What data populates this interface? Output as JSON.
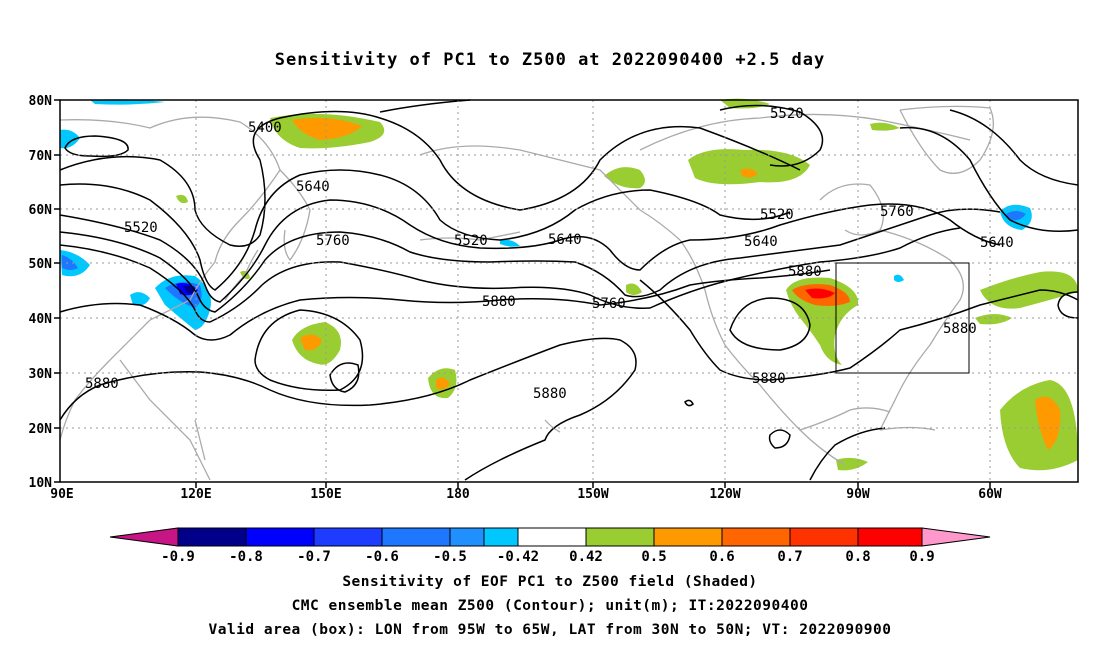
{
  "title": "Sensitivity of PC1 to Z500 at 2022090400 +2.5 day",
  "map": {
    "lon_labels": [
      "90E",
      "120E",
      "150E",
      "180",
      "150W",
      "120W",
      "90W",
      "60W"
    ],
    "lat_labels": [
      "80N",
      "70N",
      "60N",
      "50N",
      "40N",
      "30N",
      "20N",
      "10N"
    ],
    "contour_labels": [
      {
        "text": "5400"
      },
      {
        "text": "5520"
      },
      {
        "text": "5640"
      },
      {
        "text": "5520"
      },
      {
        "text": "5760"
      },
      {
        "text": "5520"
      },
      {
        "text": "5640"
      },
      {
        "text": "5880"
      },
      {
        "text": "5760"
      },
      {
        "text": "5880"
      },
      {
        "text": "5880"
      },
      {
        "text": "5520"
      },
      {
        "text": "5640"
      },
      {
        "text": "5760"
      },
      {
        "text": "5880"
      },
      {
        "text": "5880"
      },
      {
        "text": "5640"
      }
    ],
    "valid_box": {
      "lon_from": "95W",
      "lon_to": "65W",
      "lat_from": "30N",
      "lat_to": "50N"
    }
  },
  "colorbar": {
    "labels": [
      "-0.9",
      "-0.8",
      "-0.7",
      "-0.6",
      "-0.5",
      "-0.42",
      "0.42",
      "0.5",
      "0.6",
      "0.7",
      "0.8",
      "0.9"
    ],
    "colors": [
      "#c71585",
      "#00008b",
      "#0000ff",
      "#1e3cff",
      "#1e78ff",
      "#2090ff",
      "#00c8ff",
      "#ffffff",
      "#9acd32",
      "#ff9900",
      "#ff6600",
      "#ff3300",
      "#ff0000",
      "#ff99cc"
    ]
  },
  "captions": {
    "line1": "Sensitivity of EOF PC1 to Z500 field (Shaded)",
    "line2": "CMC ensemble mean Z500 (Contour); unit(m); IT:2022090400",
    "line3": "Valid area (box): LON from 95W to 65W, LAT from 30N to 50N; VT: 2022090900"
  }
}
